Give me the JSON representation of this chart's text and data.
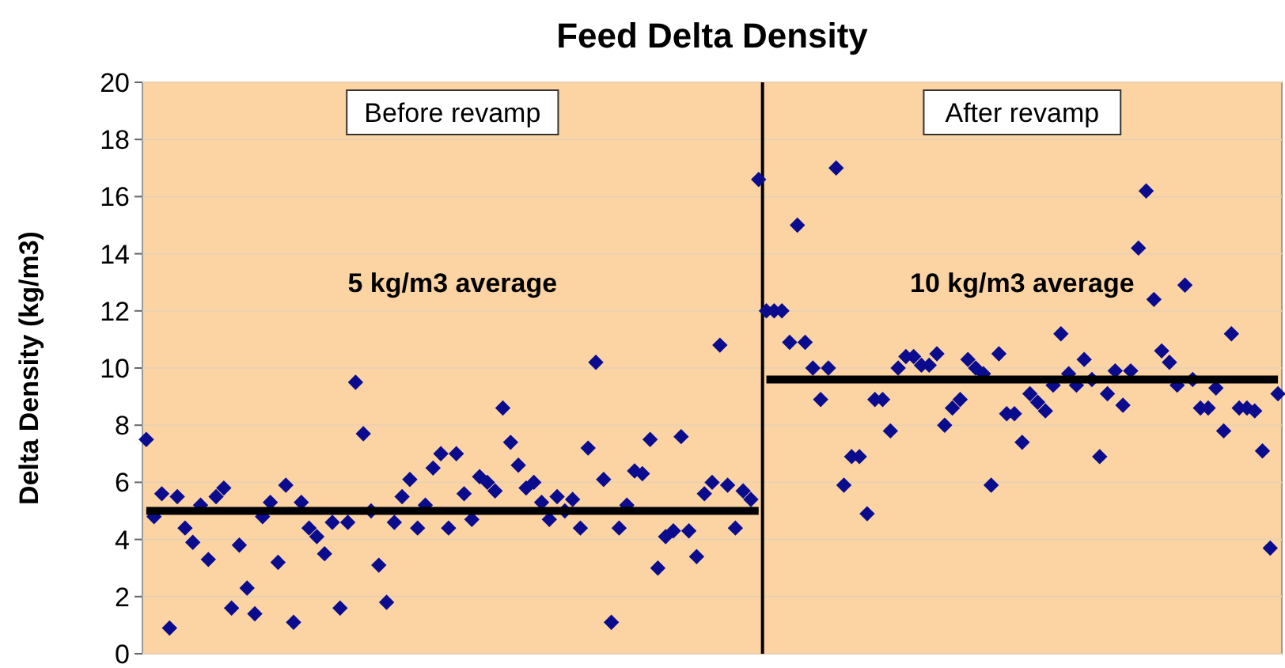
{
  "chart_data": {
    "type": "scatter",
    "title": "Feed Delta Density",
    "ylabel": "Delta Density (kg/m3)",
    "categories": [
      null,
      null,
      null,
      null,
      null,
      null,
      null,
      null,
      null,
      null,
      null,
      null,
      null,
      null,
      null,
      null,
      null,
      null,
      null,
      null,
      null,
      null,
      null,
      null,
      null,
      null,
      null,
      null,
      null,
      null,
      null,
      null,
      null,
      null,
      null,
      null,
      null,
      null,
      null,
      null,
      null,
      null,
      null,
      null,
      null,
      null,
      null,
      null,
      null,
      null,
      null,
      null,
      null,
      null,
      null,
      null,
      null,
      null,
      null,
      null,
      null,
      null,
      null,
      null,
      null,
      null,
      null,
      null,
      null,
      null,
      null,
      null,
      null,
      null,
      null,
      null,
      null,
      null,
      null,
      null,
      null,
      null,
      null,
      null,
      null,
      null,
      null,
      null,
      null,
      null,
      null,
      null,
      null,
      null,
      null,
      null,
      null,
      null,
      null,
      null,
      null,
      null,
      null,
      null,
      null,
      null,
      null,
      null,
      null,
      null,
      null,
      null,
      null,
      null,
      null,
      null,
      null,
      null,
      null,
      null,
      null,
      null,
      null,
      null,
      null,
      null,
      null,
      null,
      null,
      null,
      null,
      null,
      null,
      null,
      null,
      null,
      null,
      null,
      null,
      null,
      null,
      null,
      null,
      null,
      null,
      null,
      null
    ],
    "ylim": [
      0,
      20
    ],
    "yticks": [
      0,
      2,
      4,
      6,
      8,
      10,
      12,
      14,
      16,
      18,
      20
    ],
    "grid": "y",
    "marker": "diamond",
    "series": [
      {
        "color": "#0b0b8e",
        "values": [
          7.5,
          4.8,
          5.6,
          0.9,
          5.5,
          4.4,
          3.9,
          5.2,
          3.3,
          5.5,
          5.8,
          1.6,
          3.8,
          2.3,
          1.4,
          4.8,
          5.3,
          3.2,
          5.9,
          1.1,
          5.3,
          4.4,
          4.1,
          3.5,
          4.6,
          1.6,
          4.6,
          9.5,
          7.7,
          5.0,
          3.1,
          1.8,
          4.6,
          5.5,
          6.1,
          4.4,
          5.2,
          6.5,
          7.0,
          4.4,
          7.0,
          5.6,
          4.7,
          6.2,
          6.0,
          5.7,
          8.6,
          7.4,
          6.6,
          5.8,
          6.0,
          5.3,
          4.7,
          5.5,
          5.0,
          5.4,
          4.4,
          7.2,
          10.2,
          6.1,
          1.1,
          4.4,
          5.2,
          6.4,
          6.3,
          7.5,
          3.0,
          4.1,
          4.3,
          7.6,
          4.3,
          3.4,
          5.6,
          6.0,
          10.8,
          5.9,
          4.4,
          5.7,
          5.4,
          16.6,
          12.0,
          12.0,
          12.0,
          10.9,
          15.0,
          10.9,
          10.0,
          8.9,
          10.0,
          17.0,
          5.9,
          6.9,
          6.9,
          4.9,
          8.9,
          8.9,
          7.8,
          10.0,
          10.4,
          10.4,
          10.1,
          10.1,
          10.5,
          8.0,
          8.6,
          8.9,
          10.3,
          10.0,
          9.8,
          5.9,
          10.5,
          8.4,
          8.4,
          7.4,
          9.1,
          8.8,
          8.5,
          9.4,
          11.2,
          9.8,
          9.4,
          10.3,
          9.6,
          6.9,
          9.1,
          9.9,
          8.7,
          9.9,
          14.2,
          16.2,
          12.4,
          10.6,
          10.2,
          9.4,
          12.9,
          9.6,
          8.6,
          8.6,
          9.3,
          7.8,
          11.2,
          8.6,
          8.6,
          8.5,
          7.1,
          3.7,
          9.1
        ]
      },
      {
        "type": "line",
        "color": "#000000",
        "marker": "none",
        "values": [
          5.0,
          5.0,
          5.0,
          5.0,
          5.0,
          5.0,
          5.0,
          5.0,
          5.0,
          5.0,
          5.0,
          5.0,
          5.0,
          5.0,
          5.0,
          5.0,
          5.0,
          5.0,
          5.0,
          5.0,
          5.0,
          5.0,
          5.0,
          5.0,
          5.0,
          5.0,
          5.0,
          5.0,
          5.0,
          5.0,
          5.0,
          5.0,
          5.0,
          5.0,
          5.0,
          5.0,
          5.0,
          5.0,
          5.0,
          5.0,
          5.0,
          5.0,
          5.0,
          5.0,
          5.0,
          5.0,
          5.0,
          5.0,
          5.0,
          5.0,
          5.0,
          5.0,
          5.0,
          5.0,
          5.0,
          5.0,
          5.0,
          5.0,
          5.0,
          5.0,
          5.0,
          5.0,
          5.0,
          5.0,
          5.0,
          5.0,
          5.0,
          5.0,
          5.0,
          5.0,
          5.0,
          5.0,
          5.0,
          5.0,
          5.0,
          5.0,
          5.0,
          5.0,
          5.0,
          5.0,
          null,
          null,
          null,
          null,
          null,
          null,
          null,
          null,
          null,
          null,
          null,
          null,
          null,
          null,
          null,
          null,
          null,
          null,
          null,
          null,
          null,
          null,
          null,
          null,
          null,
          null,
          null,
          null,
          null,
          null,
          null,
          null,
          null,
          null,
          null,
          null,
          null,
          null,
          null,
          null,
          null,
          null,
          null,
          null,
          null,
          null,
          null,
          null,
          null,
          null,
          null,
          null,
          null,
          null,
          null,
          null,
          null,
          null,
          null,
          null,
          null,
          null,
          null,
          null,
          null,
          null,
          null
        ]
      },
      {
        "type": "line",
        "color": "#000000",
        "marker": "none",
        "values": [
          null,
          null,
          null,
          null,
          null,
          null,
          null,
          null,
          null,
          null,
          null,
          null,
          null,
          null,
          null,
          null,
          null,
          null,
          null,
          null,
          null,
          null,
          null,
          null,
          null,
          null,
          null,
          null,
          null,
          null,
          null,
          null,
          null,
          null,
          null,
          null,
          null,
          null,
          null,
          null,
          null,
          null,
          null,
          null,
          null,
          null,
          null,
          null,
          null,
          null,
          null,
          null,
          null,
          null,
          null,
          null,
          null,
          null,
          null,
          null,
          null,
          null,
          null,
          null,
          null,
          null,
          null,
          null,
          null,
          null,
          null,
          null,
          null,
          null,
          null,
          null,
          null,
          null,
          null,
          null,
          9.6,
          9.6,
          9.6,
          9.6,
          9.6,
          9.6,
          9.6,
          9.6,
          9.6,
          9.6,
          9.6,
          9.6,
          9.6,
          9.6,
          9.6,
          9.6,
          9.6,
          9.6,
          9.6,
          9.6,
          9.6,
          9.6,
          9.6,
          9.6,
          9.6,
          9.6,
          9.6,
          9.6,
          9.6,
          9.6,
          9.6,
          9.6,
          9.6,
          9.6,
          9.6,
          9.6,
          9.6,
          9.6,
          9.6,
          9.6,
          9.6,
          9.6,
          9.6,
          9.6,
          9.6,
          9.6,
          9.6,
          9.6,
          9.6,
          9.6,
          9.6,
          9.6,
          9.6,
          9.6,
          9.6,
          9.6,
          9.6,
          9.6,
          9.6,
          9.6,
          9.6,
          9.6,
          9.6,
          9.6,
          9.6,
          9.6,
          9.6
        ]
      }
    ],
    "annotations": [
      "Before revamp",
      "After revamp",
      "5 kg/m3 average",
      "10 kg/m3 average"
    ]
  }
}
